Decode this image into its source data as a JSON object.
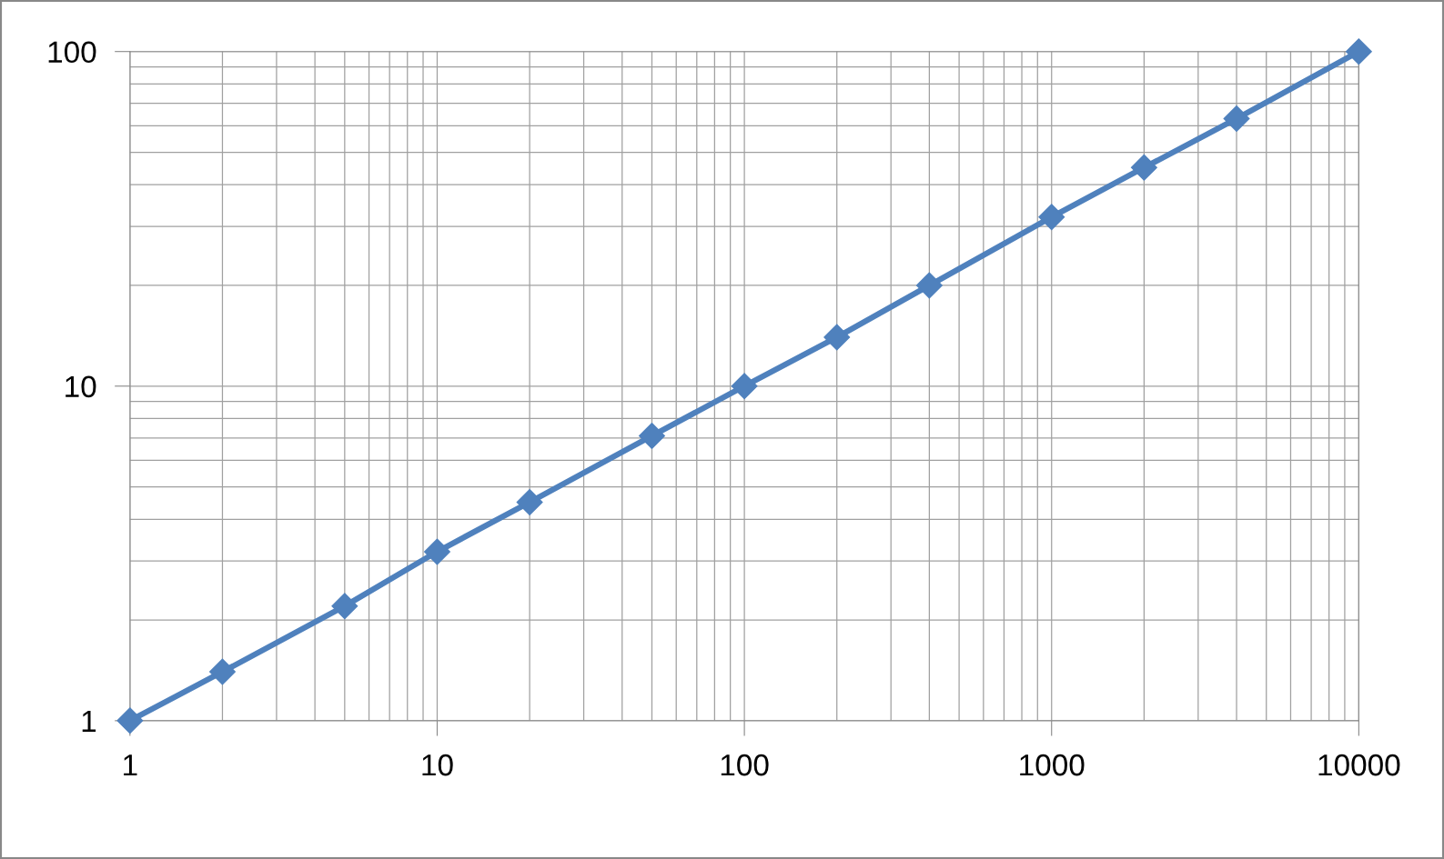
{
  "chart_data": {
    "type": "line",
    "log": "xy",
    "x": [
      1,
      2,
      5,
      10,
      20,
      50,
      100,
      200,
      400,
      1000,
      2000,
      4000,
      10000
    ],
    "series": [
      {
        "color": "#4f81bd",
        "values": [
          1,
          1.4,
          2.2,
          3.2,
          4.5,
          7.1,
          10,
          14,
          20,
          32,
          45,
          63,
          100
        ]
      }
    ],
    "xlim": [
      1,
      10000
    ],
    "xticks": [
      1,
      10,
      100,
      1000,
      10000
    ],
    "ylim": [
      1,
      100
    ],
    "yticks": [
      1,
      10,
      100
    ],
    "grid": true,
    "marker": "diamond",
    "line_style": "solid"
  }
}
